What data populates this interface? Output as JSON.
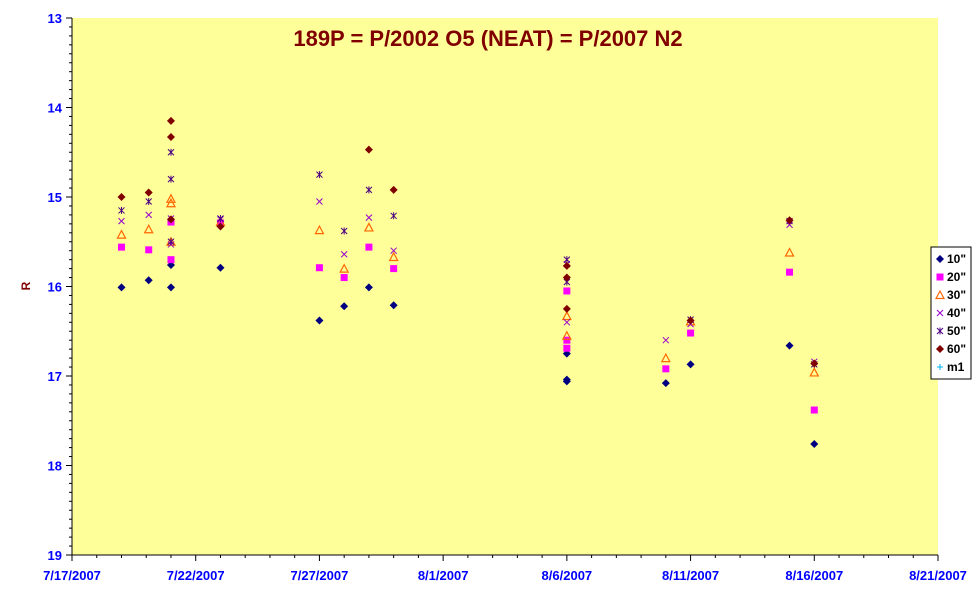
{
  "chart_data": {
    "type": "scatter",
    "title": "189P = P/2002 O5 (NEAT) = P/2007 N2",
    "xlabel": "",
    "ylabel": "R",
    "x_axis": {
      "type": "date",
      "min": "2007-07-17",
      "max": "2007-08-21",
      "tick_labels": [
        "7/17/2007",
        "7/22/2007",
        "7/27/2007",
        "8/1/2007",
        "8/6/2007",
        "8/11/2007",
        "8/16/2007",
        "8/21/2007"
      ]
    },
    "y_axis": {
      "min": 13,
      "max": 19,
      "reversed": true,
      "tick_labels": [
        "13",
        "14",
        "15",
        "16",
        "17",
        "18",
        "19"
      ]
    },
    "grid": false,
    "legend_position": "right",
    "colors": {
      "plot_background": "#ffff99",
      "axis_text": "#0000ff",
      "title": "#800000",
      "axis_line": "#000000"
    },
    "series": [
      {
        "name": "10\"",
        "marker": "diamond",
        "color": "#000080",
        "points": [
          [
            "2007-07-19",
            16.01
          ],
          [
            "2007-07-20.1",
            15.93
          ],
          [
            "2007-07-21",
            15.76
          ],
          [
            "2007-07-21",
            16.01
          ],
          [
            "2007-07-23",
            15.79
          ],
          [
            "2007-07-27",
            16.38
          ],
          [
            "2007-07-28",
            16.22
          ],
          [
            "2007-07-29",
            16.01
          ],
          [
            "2007-07-30",
            16.21
          ],
          [
            "2007-08-06",
            16.75
          ],
          [
            "2007-08-06",
            17.04
          ],
          [
            "2007-08-06",
            17.06
          ],
          [
            "2007-08-10",
            17.08
          ],
          [
            "2007-08-11",
            16.87
          ],
          [
            "2007-08-15",
            16.66
          ],
          [
            "2007-08-16",
            17.76
          ]
        ]
      },
      {
        "name": "20\"",
        "marker": "square",
        "color": "#ff00ff",
        "points": [
          [
            "2007-07-19",
            15.56
          ],
          [
            "2007-07-20.1",
            15.59
          ],
          [
            "2007-07-21",
            15.28
          ],
          [
            "2007-07-21",
            15.7
          ],
          [
            "2007-07-23",
            15.29
          ],
          [
            "2007-07-27",
            15.79
          ],
          [
            "2007-07-28",
            15.9
          ],
          [
            "2007-07-29",
            15.56
          ],
          [
            "2007-07-30",
            15.8
          ],
          [
            "2007-08-06",
            16.05
          ],
          [
            "2007-08-06",
            16.6
          ],
          [
            "2007-08-06",
            16.69
          ],
          [
            "2007-08-10",
            16.92
          ],
          [
            "2007-08-11",
            16.52
          ],
          [
            "2007-08-15",
            15.84
          ],
          [
            "2007-08-16",
            17.38
          ]
        ]
      },
      {
        "name": "30\"",
        "marker": "triangle",
        "color": "#ff6600",
        "points": [
          [
            "2007-07-19",
            15.42
          ],
          [
            "2007-07-20.1",
            15.36
          ],
          [
            "2007-07-21",
            15.02
          ],
          [
            "2007-07-21",
            15.07
          ],
          [
            "2007-07-21",
            15.5
          ],
          [
            "2007-07-23",
            15.28
          ],
          [
            "2007-07-27",
            15.37
          ],
          [
            "2007-07-28",
            15.8
          ],
          [
            "2007-07-29",
            15.34
          ],
          [
            "2007-07-30",
            15.67
          ],
          [
            "2007-08-06",
            16.33
          ],
          [
            "2007-08-06",
            16.55
          ],
          [
            "2007-08-10",
            16.8
          ],
          [
            "2007-08-11",
            16.39
          ],
          [
            "2007-08-15",
            15.62
          ],
          [
            "2007-08-16",
            16.96
          ]
        ]
      },
      {
        "name": "40\"",
        "marker": "x",
        "color": "#9900cc",
        "points": [
          [
            "2007-07-19",
            15.27
          ],
          [
            "2007-07-20.1",
            15.2
          ],
          [
            "2007-07-21",
            15.53
          ],
          [
            "2007-07-21",
            15.24
          ],
          [
            "2007-07-23",
            15.25
          ],
          [
            "2007-07-27",
            15.05
          ],
          [
            "2007-07-28",
            15.64
          ],
          [
            "2007-07-29",
            15.23
          ],
          [
            "2007-07-30",
            15.6
          ],
          [
            "2007-08-06",
            16.4
          ],
          [
            "2007-08-06",
            15.75
          ],
          [
            "2007-08-10",
            16.6
          ],
          [
            "2007-08-11",
            16.42
          ],
          [
            "2007-08-15",
            15.31
          ],
          [
            "2007-08-16",
            16.84
          ]
        ]
      },
      {
        "name": "50\"",
        "marker": "star",
        "color": "#4b0082",
        "points": [
          [
            "2007-07-19",
            15.15
          ],
          [
            "2007-07-20.1",
            15.05
          ],
          [
            "2007-07-21",
            14.5
          ],
          [
            "2007-07-21",
            14.8
          ],
          [
            "2007-07-21",
            15.5
          ],
          [
            "2007-07-23",
            15.24
          ],
          [
            "2007-07-27",
            14.75
          ],
          [
            "2007-07-28",
            15.38
          ],
          [
            "2007-07-29",
            14.92
          ],
          [
            "2007-07-30",
            15.21
          ],
          [
            "2007-08-06",
            15.7
          ],
          [
            "2007-08-06",
            15.95
          ],
          [
            "2007-08-11",
            16.37
          ],
          [
            "2007-08-15",
            15.27
          ],
          [
            "2007-08-16",
            16.87
          ]
        ]
      },
      {
        "name": "60\"",
        "marker": "diamond",
        "color": "#800000",
        "points": [
          [
            "2007-07-19",
            15.0
          ],
          [
            "2007-07-20.1",
            14.95
          ],
          [
            "2007-07-21",
            14.15
          ],
          [
            "2007-07-21",
            14.33
          ],
          [
            "2007-07-21",
            15.25
          ],
          [
            "2007-07-23",
            15.33
          ],
          [
            "2007-07-29",
            14.47
          ],
          [
            "2007-07-30",
            14.92
          ],
          [
            "2007-08-06",
            15.9
          ],
          [
            "2007-08-06",
            15.77
          ],
          [
            "2007-08-06",
            16.25
          ],
          [
            "2007-08-11",
            16.38
          ],
          [
            "2007-08-15",
            15.26
          ],
          [
            "2007-08-16",
            16.86
          ]
        ]
      },
      {
        "name": "m1",
        "marker": "plus",
        "color": "#00b0f0",
        "points": []
      }
    ]
  }
}
